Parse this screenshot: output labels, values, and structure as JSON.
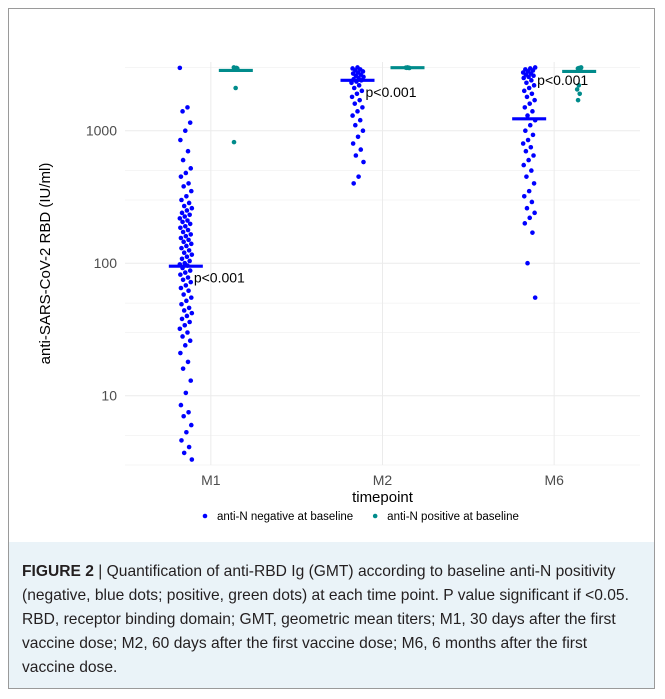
{
  "chart_data": {
    "type": "scatter",
    "subtype": "jitter-strip-with-gmt-bars",
    "y_scale": "log",
    "ylim": [
      3,
      3300
    ],
    "yticks": [
      10,
      100,
      1000
    ],
    "ytick_labels": [
      "10",
      "100",
      "1000"
    ],
    "categories": [
      "M1",
      "M2",
      "M6"
    ],
    "xlabel": "timepoint",
    "ylabel": "anti-SARS-CoV-2 RBD (IU/ml)",
    "grid": true,
    "legend_position": "bottom",
    "series": [
      {
        "name": "anti-N negative at baseline",
        "color": "#0000ff",
        "gmt": {
          "M1": 95,
          "M2": 2400,
          "M6": 1230
        },
        "points": {
          "M1": [
            2980,
            1500,
            1400,
            1150,
            1000,
            850,
            700,
            600,
            520,
            480,
            450,
            400,
            380,
            350,
            320,
            300,
            285,
            270,
            260,
            250,
            240,
            232,
            225,
            218,
            210,
            205,
            198,
            190,
            185,
            178,
            172,
            165,
            160,
            155,
            150,
            145,
            140,
            135,
            130,
            125,
            120,
            116,
            112,
            108,
            104,
            100,
            98,
            96,
            92,
            88,
            85,
            82,
            78,
            75,
            72,
            68,
            65,
            62,
            58,
            55,
            52,
            49,
            46,
            44,
            42,
            40,
            38,
            36,
            34,
            32,
            30,
            28,
            26,
            24,
            21,
            18,
            16,
            13,
            10.5,
            8.5,
            7.5,
            7,
            6,
            5.3,
            4.6,
            4.1,
            3.7,
            3.3
          ],
          "M2": [
            3000,
            2950,
            2900,
            2850,
            2800,
            2750,
            2700,
            2650,
            2600,
            2550,
            2500,
            2450,
            2400,
            2350,
            2300,
            2200,
            2100,
            2000,
            1900,
            1800,
            1700,
            1600,
            1500,
            1400,
            1300,
            1200,
            1100,
            1000,
            900,
            800,
            720,
            650,
            580,
            450,
            400
          ],
          "M6": [
            3000,
            2950,
            2900,
            2850,
            2800,
            2750,
            2700,
            2650,
            2600,
            2550,
            2500,
            2400,
            2300,
            2200,
            2100,
            2000,
            1900,
            1800,
            1700,
            1600,
            1500,
            1400,
            1300,
            1200,
            1100,
            1000,
            930,
            850,
            800,
            750,
            700,
            650,
            600,
            550,
            500,
            450,
            400,
            350,
            320,
            290,
            260,
            240,
            220,
            200,
            170,
            100,
            55
          ]
        }
      },
      {
        "name": "anti-N positive at baseline",
        "color": "#008b8b",
        "gmt": {
          "M1": 2850,
          "M2": 2990,
          "M6": 2800
        },
        "points": {
          "M1": [
            3000,
            2980,
            2960,
            2950,
            2100,
            820
          ],
          "M2": [
            3000,
            2990,
            2985,
            2980,
            2975
          ],
          "M6": [
            3000,
            2980,
            2950,
            2850,
            2200,
            2050,
            1900,
            1700
          ]
        }
      }
    ],
    "annotations": [
      {
        "category": "M1",
        "y": 78,
        "text": "p<0.001"
      },
      {
        "category": "M2",
        "y": 1960,
        "text": "p<0.001"
      },
      {
        "category": "M6",
        "y": 2420,
        "text": "p<0.001"
      }
    ]
  },
  "caption": {
    "figure_label": "FIGURE 2",
    "separator": " | ",
    "text": "Quantification of anti-RBD Ig (GMT) according to baseline anti-N positivity (negative, blue dots; positive, green dots) at each time point. P value significant if <0.05. RBD, receptor binding domain; GMT, geometric mean titers; M1, 30 days after the first vaccine dose; M2, 60 days after the first vaccine dose; M6, 6 months after the first vaccine dose."
  }
}
